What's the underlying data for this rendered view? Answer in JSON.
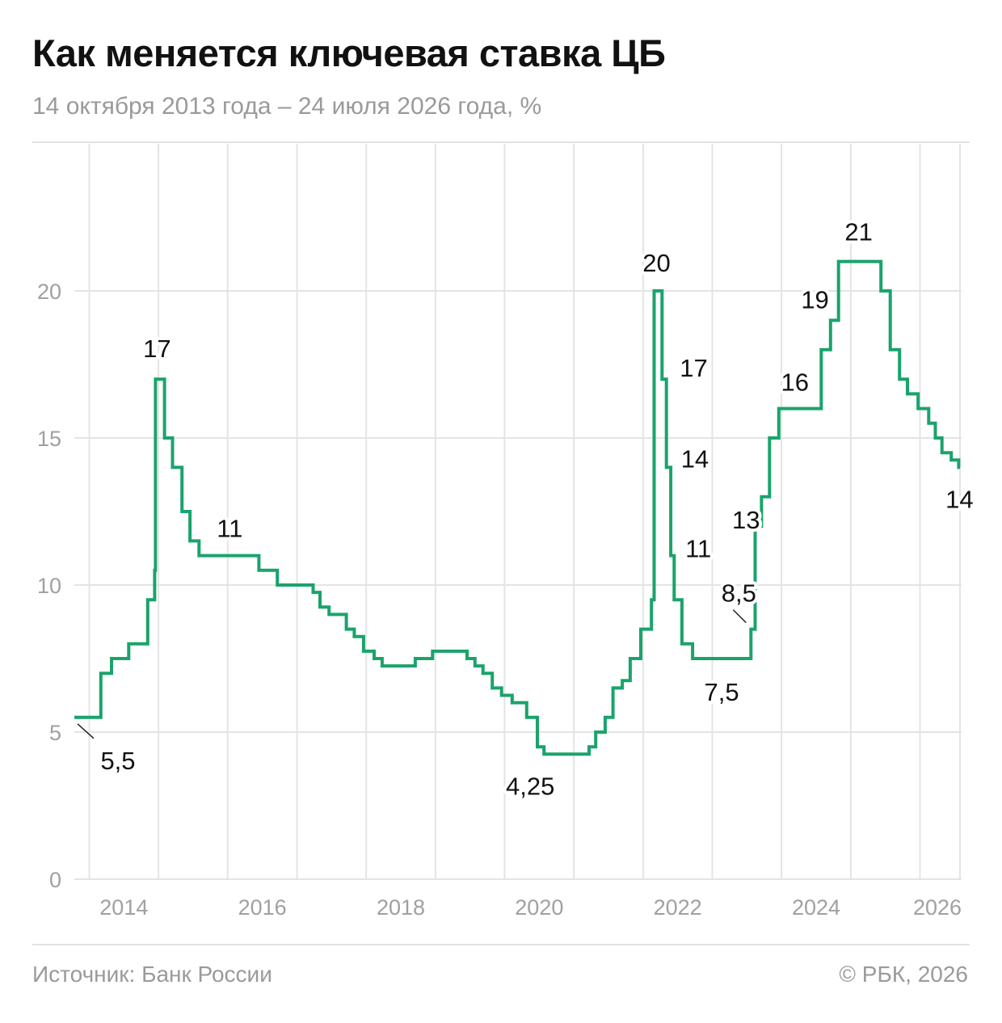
{
  "header": {
    "title": "Как меняется ключевая ставка ЦБ",
    "subtitle": "14 октября 2013 года – 24 июля 2026 года, %"
  },
  "footer": {
    "source": "Источник: Банк России",
    "copyright": "© РБК, 2026"
  },
  "colors": {
    "line": "#1aa36b",
    "grid": "#e4e4e4",
    "tick_text": "#a0a0a0",
    "label_text": "#111111"
  },
  "chart_data": {
    "type": "line",
    "step": true,
    "x_range": [
      "2013-10-14",
      "2026-07-24"
    ],
    "ylim": [
      0,
      25
    ],
    "y_ticks": [
      0,
      5,
      10,
      15,
      20
    ],
    "y_tick_labels": [
      "0",
      "5",
      "10",
      "15",
      "20"
    ],
    "x_ticks": [
      "2014-01-01",
      "2016-01-01",
      "2018-01-01",
      "2020-01-01",
      "2022-01-01",
      "2024-01-01",
      "2026-01-01"
    ],
    "x_tick_labels": [
      "2014",
      "2016",
      "2018",
      "2020",
      "2022",
      "2024",
      "2026"
    ],
    "grid": true,
    "series": [
      {
        "points": [
          [
            "2013-10-14",
            5.5
          ],
          [
            "2014-03-03",
            7.0
          ],
          [
            "2014-04-28",
            7.5
          ],
          [
            "2014-07-28",
            8.0
          ],
          [
            "2014-11-05",
            9.5
          ],
          [
            "2014-12-12",
            10.5
          ],
          [
            "2014-12-16",
            17.0
          ],
          [
            "2015-02-02",
            15.0
          ],
          [
            "2015-03-16",
            14.0
          ],
          [
            "2015-05-05",
            12.5
          ],
          [
            "2015-06-16",
            11.5
          ],
          [
            "2015-08-03",
            11.0
          ],
          [
            "2016-06-14",
            10.5
          ],
          [
            "2016-09-19",
            10.0
          ],
          [
            "2017-03-27",
            9.75
          ],
          [
            "2017-05-02",
            9.25
          ],
          [
            "2017-06-19",
            9.0
          ],
          [
            "2017-09-18",
            8.5
          ],
          [
            "2017-10-30",
            8.25
          ],
          [
            "2017-12-18",
            7.75
          ],
          [
            "2018-02-12",
            7.5
          ],
          [
            "2018-03-26",
            7.25
          ],
          [
            "2018-09-17",
            7.5
          ],
          [
            "2018-12-17",
            7.75
          ],
          [
            "2019-06-17",
            7.5
          ],
          [
            "2019-07-29",
            7.25
          ],
          [
            "2019-09-09",
            7.0
          ],
          [
            "2019-10-28",
            6.5
          ],
          [
            "2019-12-16",
            6.25
          ],
          [
            "2020-02-10",
            6.0
          ],
          [
            "2020-04-27",
            5.5
          ],
          [
            "2020-06-22",
            4.5
          ],
          [
            "2020-07-27",
            4.25
          ],
          [
            "2021-03-22",
            4.5
          ],
          [
            "2021-04-26",
            5.0
          ],
          [
            "2021-06-15",
            5.5
          ],
          [
            "2021-07-26",
            6.5
          ],
          [
            "2021-09-13",
            6.75
          ],
          [
            "2021-10-25",
            7.5
          ],
          [
            "2021-12-20",
            8.5
          ],
          [
            "2022-02-14",
            9.5
          ],
          [
            "2022-02-28",
            20.0
          ],
          [
            "2022-04-11",
            17.0
          ],
          [
            "2022-05-04",
            14.0
          ],
          [
            "2022-05-27",
            11.0
          ],
          [
            "2022-06-14",
            9.5
          ],
          [
            "2022-07-25",
            8.0
          ],
          [
            "2022-09-19",
            7.5
          ],
          [
            "2023-07-24",
            8.5
          ],
          [
            "2023-08-15",
            12.0
          ],
          [
            "2023-09-18",
            13.0
          ],
          [
            "2023-10-30",
            15.0
          ],
          [
            "2023-12-18",
            16.0
          ],
          [
            "2024-07-29",
            18.0
          ],
          [
            "2024-09-16",
            19.0
          ],
          [
            "2024-10-28",
            21.0
          ],
          [
            "2025-06-09",
            20.0
          ],
          [
            "2025-07-28",
            18.0
          ],
          [
            "2025-09-15",
            17.0
          ],
          [
            "2025-10-27",
            16.5
          ],
          [
            "2025-12-22",
            16.0
          ],
          [
            "2026-02-16",
            15.5
          ],
          [
            "2026-03-23",
            15.0
          ],
          [
            "2026-04-27",
            14.5
          ],
          [
            "2026-06-15",
            14.25
          ],
          [
            "2026-07-24",
            14.0
          ],
          [
            "2026-07-31",
            14.0
          ]
        ]
      }
    ],
    "annotations": [
      {
        "text": "5,5",
        "x": "2013-10-14",
        "y": 5.5,
        "placement": "below-right",
        "leader": true
      },
      {
        "text": "17",
        "x": "2014-12-16",
        "y": 17.0,
        "placement": "above"
      },
      {
        "text": "11",
        "x": "2015-08-03",
        "y": 11.0,
        "placement": "above-right"
      },
      {
        "text": "4,25",
        "x": "2020-07-27",
        "y": 4.25,
        "placement": "below-right"
      },
      {
        "text": "20",
        "x": "2022-02-28",
        "y": 20.0,
        "placement": "above"
      },
      {
        "text": "17",
        "x": "2022-04-11",
        "y": 17.0,
        "placement": "right"
      },
      {
        "text": "14",
        "x": "2022-05-04",
        "y": 14.0,
        "placement": "right"
      },
      {
        "text": "11",
        "x": "2022-05-27",
        "y": 11.0,
        "placement": "right"
      },
      {
        "text": "7,5",
        "x": "2022-09-19",
        "y": 7.5,
        "placement": "below-right"
      },
      {
        "text": "8,5",
        "x": "2023-07-24",
        "y": 8.5,
        "placement": "above-left",
        "leader": true
      },
      {
        "text": "13",
        "x": "2023-09-18",
        "y": 13.0,
        "placement": "left"
      },
      {
        "text": "16",
        "x": "2023-12-18",
        "y": 16.0,
        "placement": "above-right"
      },
      {
        "text": "19",
        "x": "2024-09-16",
        "y": 19.0,
        "placement": "left"
      },
      {
        "text": "21",
        "x": "2024-10-28",
        "y": 21.0,
        "placement": "above-right"
      },
      {
        "text": "14",
        "x": "2026-07-24",
        "y": 14.0,
        "placement": "below"
      }
    ]
  }
}
